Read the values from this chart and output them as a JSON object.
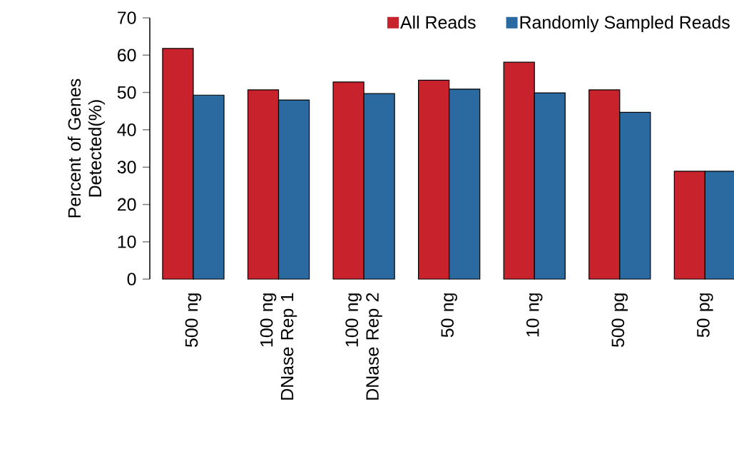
{
  "chart_data": {
    "type": "bar",
    "ylabel": "Percent of Genes Detected(%)",
    "categories": [
      "500 ng",
      "100 ng DNase Rep 1",
      "100 ng DNase Rep 2",
      "50 ng",
      "10 ng",
      "500 pg",
      "50 pg"
    ],
    "series": [
      {
        "name": "All Reads",
        "color": "#c8232c",
        "values": [
          61.8,
          50.7,
          52.8,
          53.3,
          58.1,
          50.7,
          28.9
        ]
      },
      {
        "name": "Randomly Sampled Reads",
        "color": "#2b6aa0",
        "values": [
          49.3,
          48.0,
          49.7,
          50.9,
          49.9,
          44.7,
          28.9
        ]
      }
    ],
    "ylim": [
      0,
      70
    ],
    "yticks": [
      0,
      10,
      20,
      30,
      40,
      50,
      60,
      70
    ],
    "legend": "top right"
  }
}
